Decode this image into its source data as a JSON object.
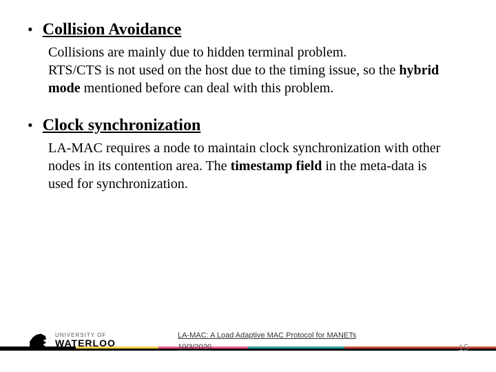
{
  "bullets": [
    {
      "heading": "Collision Avoidance",
      "body_pre": "Collisions are mainly due to hidden terminal problem.",
      "body_line2_pre": " RTS/CTS is not used on the host due to the timing issue, so the ",
      "bold1": "hybrid mode",
      "body_line2_post": " mentioned before can deal with this problem."
    },
    {
      "heading": "Clock synchronization",
      "body_pre": " LA-MAC requires a node to maintain clock  synchronization with other nodes in its contention area. The ",
      "bold1": "timestamp field",
      "body_post": " in the meta-data is used for synchronization."
    }
  ],
  "logo": {
    "top": "UNIVERSITY OF",
    "main": "WATERLOO"
  },
  "footer": {
    "title": "LA-MAC: A Load Adaptive MAC Protocol for MANETs",
    "date": "10/3/2020",
    "page": "15"
  },
  "colors": {
    "stripe": [
      "#000000",
      "#f6d04d",
      "#e85a8b",
      "#2fa0a0",
      "#c94a3c"
    ]
  }
}
